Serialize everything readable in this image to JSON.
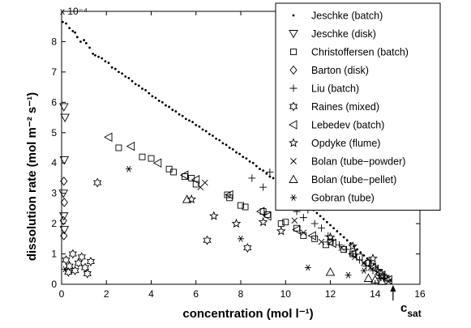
{
  "chart_data": {
    "type": "scatter",
    "xlabel": "concentration (mol l⁻¹)",
    "ylabel": "dissolution rate (mol m⁻² s⁻¹)",
    "y_exponent_label": "x 10⁻⁴",
    "y_scale_factor": 0.0001,
    "xlim": [
      0,
      16
    ],
    "ylim": [
      0,
      9
    ],
    "x_ticks": [
      "0",
      "2",
      "4",
      "6",
      "8",
      "10",
      "12",
      "14",
      "16"
    ],
    "y_ticks": [
      "0",
      "1",
      "2",
      "3",
      "4",
      "5",
      "6",
      "7",
      "8"
    ],
    "csat_label": "c",
    "csat_subscript": "sat",
    "csat_x": 14.8,
    "grid": false,
    "legend_position": "top-right",
    "series": [
      {
        "name": "Jeschke (batch)",
        "marker": "dot",
        "points": [
          [
            0.05,
            8.65
          ],
          [
            0.2,
            8.6
          ],
          [
            0.35,
            8.45
          ],
          [
            0.5,
            8.35
          ],
          [
            0.6,
            8.3
          ],
          [
            0.7,
            8.15
          ],
          [
            0.85,
            8.0
          ],
          [
            1.0,
            8.05
          ],
          [
            1.1,
            7.95
          ],
          [
            1.25,
            7.8
          ],
          [
            1.4,
            7.6
          ],
          [
            1.5,
            7.55
          ],
          [
            1.65,
            7.5
          ],
          [
            1.8,
            7.45
          ],
          [
            1.95,
            7.35
          ],
          [
            2.1,
            7.3
          ],
          [
            2.25,
            7.15
          ],
          [
            2.4,
            7.1
          ],
          [
            2.55,
            7.0
          ],
          [
            2.7,
            6.95
          ],
          [
            2.85,
            6.85
          ],
          [
            3.0,
            6.8
          ],
          [
            3.15,
            6.7
          ],
          [
            3.3,
            6.6
          ],
          [
            3.45,
            6.55
          ],
          [
            3.6,
            6.45
          ],
          [
            3.75,
            6.4
          ],
          [
            3.9,
            6.3
          ],
          [
            4.05,
            6.2
          ],
          [
            4.2,
            6.15
          ],
          [
            4.35,
            6.05
          ],
          [
            4.5,
            6.0
          ],
          [
            4.65,
            5.9
          ],
          [
            4.8,
            5.85
          ],
          [
            4.95,
            5.75
          ],
          [
            5.1,
            5.7
          ],
          [
            5.25,
            5.6
          ],
          [
            5.4,
            5.55
          ],
          [
            5.55,
            5.45
          ],
          [
            5.7,
            5.4
          ],
          [
            5.85,
            5.35
          ],
          [
            6.0,
            5.25
          ],
          [
            6.15,
            5.2
          ],
          [
            6.3,
            5.1
          ],
          [
            6.45,
            5.05
          ],
          [
            6.6,
            4.95
          ],
          [
            6.75,
            4.9
          ],
          [
            6.9,
            4.8
          ],
          [
            7.05,
            4.75
          ],
          [
            7.2,
            4.65
          ],
          [
            7.35,
            4.6
          ],
          [
            7.5,
            4.5
          ],
          [
            7.65,
            4.45
          ],
          [
            7.8,
            4.35
          ],
          [
            7.95,
            4.3
          ],
          [
            8.1,
            4.2
          ],
          [
            8.25,
            4.15
          ],
          [
            8.4,
            4.05
          ],
          [
            8.55,
            4.0
          ],
          [
            8.7,
            3.9
          ],
          [
            8.85,
            3.8
          ],
          [
            9.0,
            3.75
          ],
          [
            9.15,
            3.65
          ],
          [
            9.3,
            3.55
          ],
          [
            9.45,
            3.5
          ],
          [
            9.6,
            3.4
          ],
          [
            9.75,
            3.3
          ],
          [
            9.9,
            3.25
          ],
          [
            10.05,
            3.15
          ],
          [
            10.2,
            3.05
          ],
          [
            10.35,
            3.0
          ],
          [
            10.5,
            2.9
          ],
          [
            10.65,
            2.8
          ],
          [
            10.8,
            2.7
          ],
          [
            10.95,
            2.6
          ],
          [
            11.1,
            2.55
          ],
          [
            11.25,
            2.45
          ],
          [
            11.4,
            2.35
          ],
          [
            11.55,
            2.25
          ],
          [
            11.7,
            2.15
          ],
          [
            11.85,
            2.05
          ],
          [
            12.0,
            1.95
          ],
          [
            12.15,
            1.85
          ],
          [
            12.3,
            1.75
          ],
          [
            12.45,
            1.65
          ],
          [
            12.6,
            1.55
          ],
          [
            12.75,
            1.45
          ],
          [
            12.9,
            1.35
          ],
          [
            13.05,
            1.25
          ],
          [
            13.2,
            1.15
          ],
          [
            13.35,
            1.05
          ],
          [
            13.5,
            0.95
          ],
          [
            13.65,
            0.85
          ],
          [
            13.8,
            0.75
          ],
          [
            13.95,
            0.65
          ],
          [
            14.1,
            0.55
          ],
          [
            14.25,
            0.45
          ],
          [
            14.4,
            0.35
          ],
          [
            14.55,
            0.25
          ],
          [
            14.7,
            0.12
          ]
        ]
      },
      {
        "name": "Jeschke (disk)",
        "marker": "triangle-down",
        "points": [
          [
            0.1,
            5.85
          ],
          [
            0.15,
            5.5
          ],
          [
            0.12,
            4.1
          ],
          [
            0.08,
            3.0
          ],
          [
            0.1,
            2.25
          ],
          [
            0.12,
            1.8
          ]
        ]
      },
      {
        "name": "Christoffersen (batch)",
        "marker": "square",
        "points": [
          [
            2.55,
            4.5
          ],
          [
            3.6,
            4.2
          ],
          [
            4.0,
            4.15
          ],
          [
            4.8,
            3.8
          ],
          [
            5.0,
            3.7
          ],
          [
            5.5,
            3.55
          ],
          [
            5.8,
            3.5
          ],
          [
            6.0,
            3.3
          ],
          [
            7.4,
            2.95
          ],
          [
            7.5,
            2.85
          ],
          [
            8.0,
            2.6
          ],
          [
            8.2,
            2.55
          ],
          [
            9.0,
            2.4
          ],
          [
            9.2,
            2.3
          ],
          [
            9.8,
            2.0
          ],
          [
            10.0,
            2.05
          ],
          [
            10.5,
            1.85
          ],
          [
            10.8,
            1.6
          ],
          [
            11.3,
            1.5
          ],
          [
            11.8,
            1.3
          ],
          [
            12.0,
            1.4
          ],
          [
            12.6,
            1.15
          ],
          [
            13.0,
            1.0
          ],
          [
            13.3,
            0.9
          ],
          [
            13.7,
            0.7
          ],
          [
            13.9,
            0.6
          ],
          [
            14.2,
            0.4
          ],
          [
            14.5,
            0.2
          ]
        ]
      },
      {
        "name": "Barton (disk)",
        "marker": "diamond",
        "points": [
          [
            0.1,
            3.4
          ],
          [
            0.12,
            2.7
          ],
          [
            0.08,
            2.1
          ],
          [
            0.1,
            1.6
          ]
        ]
      },
      {
        "name": "Liu (batch)",
        "marker": "plus",
        "points": [
          [
            8.5,
            3.5
          ],
          [
            9.0,
            3.2
          ],
          [
            9.3,
            3.7
          ],
          [
            9.8,
            2.9
          ],
          [
            10.2,
            2.65
          ],
          [
            10.5,
            2.4
          ],
          [
            10.8,
            2.2
          ],
          [
            11.0,
            2.45
          ],
          [
            11.3,
            2.0
          ],
          [
            11.6,
            1.85
          ],
          [
            11.9,
            1.6
          ],
          [
            12.1,
            1.45
          ],
          [
            12.4,
            1.3
          ],
          [
            12.7,
            1.15
          ],
          [
            13.0,
            1.0
          ],
          [
            13.3,
            0.8
          ],
          [
            13.6,
            0.6
          ],
          [
            13.9,
            0.45
          ],
          [
            14.2,
            0.3
          ],
          [
            14.4,
            0.2
          ]
        ]
      },
      {
        "name": "Raines (mixed)",
        "marker": "hexagram",
        "points": [
          [
            0.2,
            0.8
          ],
          [
            0.35,
            0.6
          ],
          [
            0.5,
            1.0
          ],
          [
            0.6,
            0.45
          ],
          [
            0.75,
            0.7
          ],
          [
            0.9,
            0.9
          ],
          [
            1.05,
            0.55
          ],
          [
            1.15,
            0.35
          ],
          [
            1.3,
            0.75
          ],
          [
            0.3,
            0.4
          ],
          [
            1.6,
            3.35
          ],
          [
            6.5,
            1.45
          ],
          [
            8.3,
            1.2
          ]
        ]
      },
      {
        "name": "Lebedev (batch)",
        "marker": "triangle-left",
        "points": [
          [
            2.1,
            4.85
          ],
          [
            3.1,
            4.55
          ],
          [
            4.3,
            4.0
          ],
          [
            5.5,
            3.6
          ],
          [
            6.0,
            3.45
          ],
          [
            7.5,
            2.95
          ],
          [
            8.9,
            2.4
          ],
          [
            9.2,
            2.25
          ],
          [
            10.5,
            1.8
          ],
          [
            11.2,
            1.6
          ],
          [
            12.1,
            1.35
          ],
          [
            13.0,
            1.0
          ],
          [
            13.6,
            0.7
          ],
          [
            14.0,
            0.5
          ],
          [
            14.3,
            0.3
          ],
          [
            14.6,
            0.15
          ]
        ]
      },
      {
        "name": "Opdyke (flume)",
        "marker": "pentagram",
        "points": [
          [
            5.8,
            2.8
          ],
          [
            6.8,
            2.25
          ],
          [
            7.8,
            2.0
          ],
          [
            9.0,
            2.05
          ],
          [
            9.8,
            1.75
          ],
          [
            12.0,
            1.55
          ],
          [
            13.0,
            1.25
          ],
          [
            13.9,
            0.85
          ]
        ]
      },
      {
        "name": "Bolan (tube−powder)",
        "marker": "x",
        "points": [
          [
            6.2,
            3.2
          ],
          [
            6.4,
            3.35
          ],
          [
            10.4,
            2.1
          ],
          [
            10.8,
            1.7
          ],
          [
            11.6,
            1.4
          ],
          [
            12.5,
            1.2
          ],
          [
            13.1,
            0.9
          ],
          [
            13.5,
            0.7
          ],
          [
            13.8,
            0.55
          ],
          [
            14.1,
            0.4
          ],
          [
            14.4,
            0.25
          ],
          [
            14.6,
            0.1
          ]
        ]
      },
      {
        "name": "Bolan (tube−pellet)",
        "marker": "triangle-up",
        "points": [
          [
            5.6,
            2.8
          ],
          [
            12.0,
            0.4
          ],
          [
            13.7,
            0.2
          ],
          [
            14.0,
            0.15
          ],
          [
            14.3,
            0.1
          ]
        ]
      },
      {
        "name": "Gobran (tube)",
        "marker": "asterisk",
        "points": [
          [
            0.15,
            0.5
          ],
          [
            3.0,
            3.8
          ],
          [
            8.0,
            1.5
          ],
          [
            11.0,
            0.55
          ],
          [
            12.8,
            0.3
          ],
          [
            13.5,
            0.45
          ],
          [
            14.2,
            0.2
          ]
        ]
      }
    ]
  }
}
